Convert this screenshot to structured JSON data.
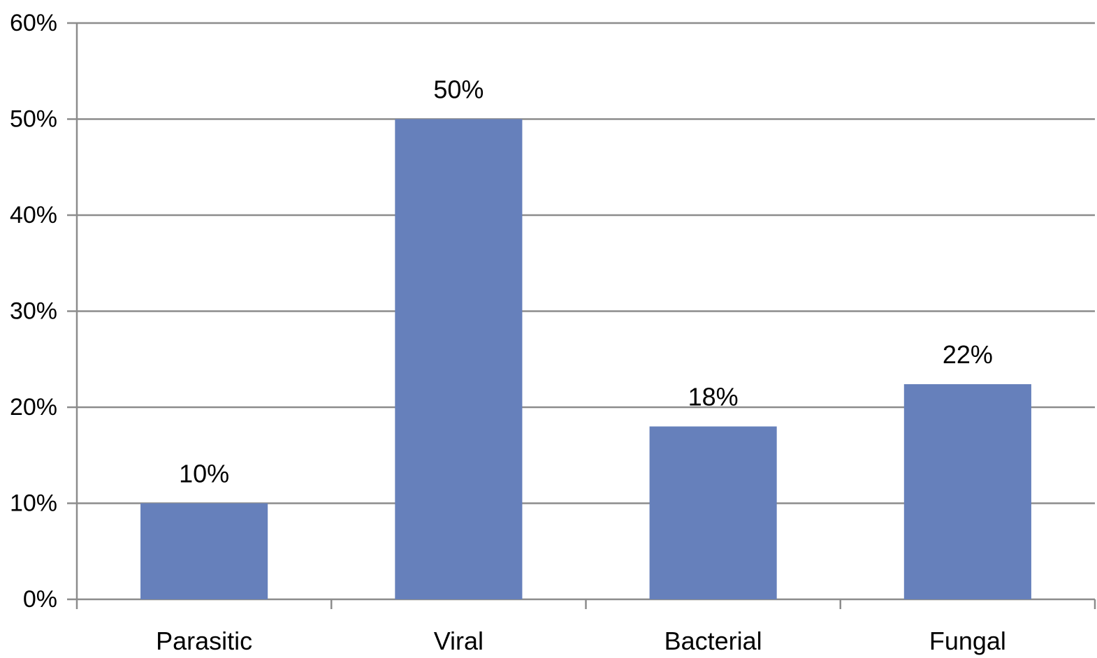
{
  "chart_data": {
    "type": "bar",
    "categories": [
      "Parasitic",
      "Viral",
      "Bacterial",
      "Fungal"
    ],
    "values": [
      10,
      50,
      18,
      22.4
    ],
    "data_labels": [
      "10%",
      "50%",
      "18%",
      "22%"
    ],
    "ylim": [
      0,
      60
    ],
    "y_ticks": [
      0,
      10,
      20,
      30,
      40,
      50,
      60
    ],
    "y_tick_labels": [
      "0%",
      "10%",
      "20%",
      "30%",
      "40%",
      "50%",
      "60%"
    ],
    "grid": true,
    "legend": false,
    "colors": {
      "bar": "#6680bb",
      "grid": "#8c8c8c",
      "axis": "#8c8c8c",
      "text": "#000000"
    }
  }
}
